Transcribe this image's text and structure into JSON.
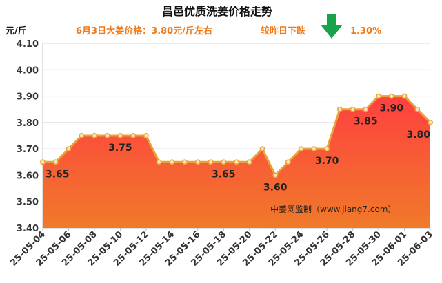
{
  "header": {
    "title": "昌邑优质洗姜价格走势",
    "subtitle_left": "6月3日大姜价格：3.80元/斤左右",
    "subtitle_right": "较昨日下跌",
    "change_value": "1.30%",
    "trend_icon": "down-arrow-icon",
    "trend_color": "#16a34a"
  },
  "unit_label": "元/斤",
  "credit": "中姜网监制（www.jiang7.com）",
  "colors": {
    "line": "#e8a23a",
    "marker_fill": "#fbe3b5",
    "area_top": "#ff4040",
    "area_bottom": "#f07a2a"
  },
  "chart_data": {
    "type": "area",
    "title": "昌邑优质洗姜价格走势",
    "ylabel": "元/斤",
    "ylim": [
      3.4,
      4.1
    ],
    "yticks": [
      "3.40",
      "3.50",
      "3.60",
      "3.70",
      "3.80",
      "3.90",
      "4.00",
      "4.10"
    ],
    "grid": true,
    "x": [
      "25-05-04",
      "25-05-05",
      "25-05-06",
      "25-05-07",
      "25-05-08",
      "25-05-09",
      "25-05-10",
      "25-05-11",
      "25-05-12",
      "25-05-13",
      "25-05-14",
      "25-05-15",
      "25-05-16",
      "25-05-17",
      "25-05-18",
      "25-05-19",
      "25-05-20",
      "25-05-21",
      "25-05-22",
      "25-05-23",
      "25-05-24",
      "25-05-25",
      "25-05-26",
      "25-05-27",
      "25-05-28",
      "25-05-29",
      "25-05-30",
      "25-05-31",
      "25-06-01",
      "25-06-02",
      "25-06-03"
    ],
    "xtick_labels": [
      "25-05-04",
      "25-05-06",
      "25-05-08",
      "25-05-10",
      "25-05-12",
      "25-05-14",
      "25-05-16",
      "25-05-18",
      "25-05-20",
      "25-05-22",
      "25-05-24",
      "25-05-26",
      "25-05-28",
      "25-05-30",
      "25-06-01",
      "25-06-03"
    ],
    "values": [
      3.65,
      3.65,
      3.7,
      3.75,
      3.75,
      3.75,
      3.75,
      3.75,
      3.75,
      3.65,
      3.65,
      3.65,
      3.65,
      3.65,
      3.65,
      3.65,
      3.65,
      3.7,
      3.6,
      3.65,
      3.7,
      3.7,
      3.7,
      3.85,
      3.85,
      3.85,
      3.9,
      3.9,
      3.9,
      3.85,
      3.8
    ],
    "data_labels": [
      {
        "index": 0,
        "text": "3.65"
      },
      {
        "index": 6,
        "text": "3.75"
      },
      {
        "index": 14,
        "text": "3.65"
      },
      {
        "index": 18,
        "text": "3.60"
      },
      {
        "index": 22,
        "text": "3.70"
      },
      {
        "index": 25,
        "text": "3.85"
      },
      {
        "index": 27,
        "text": "3.90"
      },
      {
        "index": 30,
        "text": "3.80"
      }
    ]
  }
}
